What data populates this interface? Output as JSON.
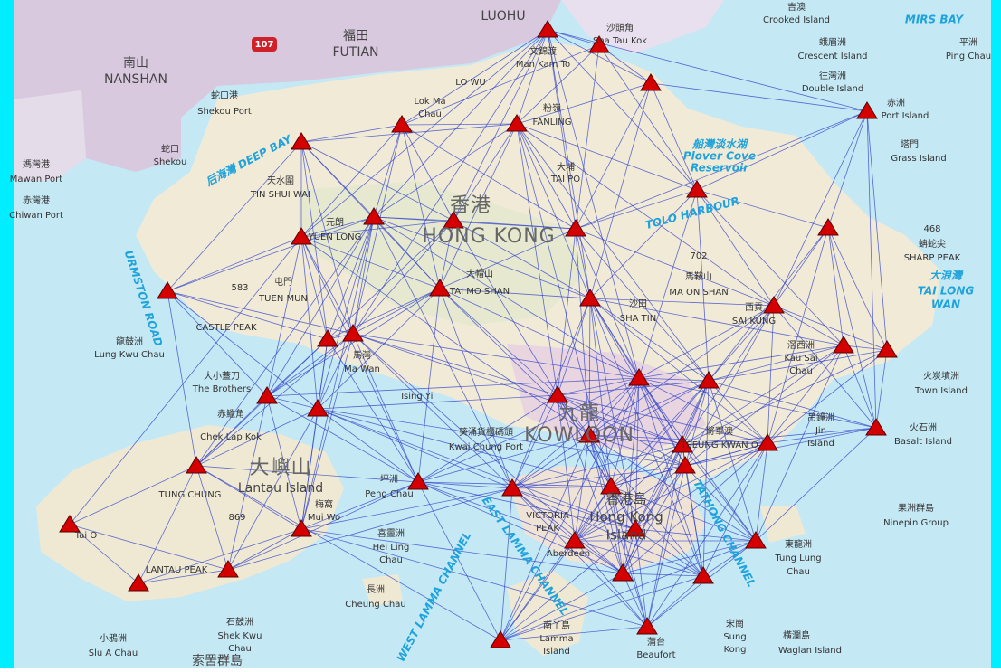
{
  "places": [
    "LUOHU",
    "福田",
    "FUTIAN",
    "南山",
    "NANSHAN",
    "107",
    "蛇口港",
    "Shekou Port",
    "蛇口",
    "Shekou",
    "媽灣港",
    "Mawan Port",
    "赤灣港",
    "Chiwan Port",
    "后海灣 DEEP BAY",
    "天水圍",
    "TIN SHUI WAI",
    "元朗",
    "YUEN LONG",
    "香港",
    "HONG  KONG",
    "大帽山",
    "TAI MO SHAN",
    "屯門",
    "TUEN MUN",
    "583",
    "CASTLE PEAK",
    "URMSTON ROAD",
    "龍鼓洲",
    "Lung Kwu Chau",
    "大小蓋刀",
    "The Brothers",
    "赤鱲角",
    "Chek Lap Kok",
    "大嶼山",
    "Lantau Island",
    "TUNG CHUNG",
    "869",
    "LANTAU PEAK",
    "Tai O",
    "梅窩",
    "Mui Wo",
    "坪洲",
    "Peng Chau",
    "喜靈洲",
    "Hei Ling",
    "Chau",
    "長洲",
    "Cheung Chau",
    "石鼓洲",
    "Shek Kwu",
    "Chau",
    "小鴉洲",
    "Slu A Chau",
    "索罟群島",
    "南丫島",
    "Lamma",
    "Island",
    "WEST LAMMA CHANNEL",
    "EAST LAMMA CHANNEL",
    "VICTORIA",
    "PEAK",
    "香港島",
    "Hong Kong",
    "Island",
    "Aberdeen",
    "九龍",
    "KOWLOON",
    "葵涌貨櫃碼頭",
    "Kwai Chung Port",
    "Tsing Yi",
    "馬灣",
    "Ma Wan",
    "將軍澳",
    "TSEUNG KWAN O",
    "沙田",
    "SHA TIN",
    "702",
    "馬鞍山",
    "MA ON SHAN",
    "西貢",
    "SAI KUNG",
    "TOLO HARBOUR",
    "大埔",
    "TAI PO",
    "粉嶺",
    "FANLING",
    "船灣淡水湖",
    "Plover Cove",
    "Reservoir",
    "沙頭角",
    "Sha Tau Kok",
    "文錦渡",
    "Man Kam To",
    "LO WU",
    "Lok Ma",
    "Chau",
    "吉澳",
    "Crooked Island",
    "MIRS BAY",
    "蛾眉洲",
    "Crescent Island",
    "往灣洲",
    "Double Island",
    "平洲",
    "Ping Chau",
    "赤洲",
    "Port Island",
    "塔門",
    "Grass Island",
    "468",
    "蚺蛇尖",
    "SHARP PEAK",
    "大浪灣",
    "TAI LONG",
    "WAN",
    "滘西洲",
    "Kau Sai",
    "Chau",
    "火炭墳洲",
    "Town Island",
    "吊鐘洲",
    "Jin",
    "Island",
    "火石洲",
    "Basalt Island",
    "果洲群島",
    "Ninepin Group",
    "東龍洲",
    "Tung Lung",
    "Chau",
    "TATHONG CHANNEL",
    "蒲台",
    "Beaufort",
    "宋崗",
    "Sung",
    "Kong",
    "橫瀾島",
    "Waglan Island"
  ]
}
